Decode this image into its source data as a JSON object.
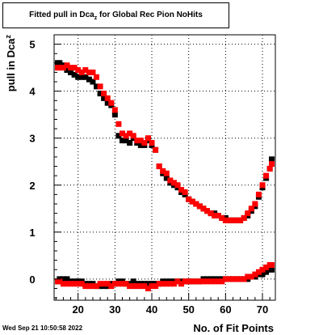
{
  "chart_data": {
    "type": "scatter",
    "title_main": "Fitted pull in Dca",
    "title_sub": "z",
    "title_rest": " for Global Rec Pion NoHits",
    "xlabel": "No. of Fit Points",
    "ylabel_main": "pull in Dca",
    "ylabel_sub": "z",
    "xlim": [
      13.5,
      73.5
    ],
    "ylim": [
      -0.45,
      5.2
    ],
    "x_ticks": [
      20,
      30,
      40,
      50,
      60,
      70
    ],
    "y_ticks": [
      0,
      1,
      2,
      3,
      4,
      5
    ],
    "grid": true,
    "x": [
      14,
      15,
      16,
      17,
      18,
      19,
      20,
      21,
      22,
      23,
      24,
      25,
      26,
      27,
      28,
      29,
      30,
      31,
      32,
      33,
      34,
      35,
      36,
      37,
      38,
      39,
      40,
      41,
      42,
      43,
      44,
      45,
      46,
      47,
      48,
      49,
      50,
      51,
      52,
      53,
      54,
      55,
      56,
      57,
      58,
      59,
      60,
      61,
      62,
      63,
      64,
      65,
      66,
      67,
      68,
      69,
      70,
      71,
      72,
      73
    ],
    "series": [
      {
        "color": "#000000",
        "values_upper": [
          4.6,
          4.6,
          4.55,
          4.45,
          4.4,
          4.35,
          4.3,
          4.3,
          4.3,
          4.25,
          4.2,
          4.1,
          3.95,
          3.85,
          3.75,
          3.7,
          3.5,
          3.05,
          2.95,
          2.95,
          2.9,
          3.0,
          2.9,
          2.85,
          2.85,
          2.95,
          2.85,
          2.75,
          2.4,
          2.25,
          2.15,
          2.05,
          2.0,
          1.95,
          1.85,
          1.8,
          1.7,
          1.65,
          1.6,
          1.55,
          1.5,
          1.45,
          1.4,
          1.4,
          1.35,
          1.3,
          1.3,
          1.25,
          1.25,
          1.25,
          1.25,
          1.3,
          1.35,
          1.45,
          1.55,
          1.75,
          1.95,
          2.15,
          2.35,
          2.55
        ],
        "values_lower": [
          -0.05,
          0.0,
          0.0,
          0.0,
          -0.05,
          -0.05,
          -0.05,
          -0.05,
          -0.1,
          -0.1,
          -0.1,
          -0.15,
          -0.15,
          -0.15,
          -0.15,
          -0.1,
          -0.1,
          -0.05,
          -0.05,
          -0.1,
          -0.1,
          -0.05,
          -0.1,
          -0.1,
          -0.1,
          -0.1,
          -0.1,
          -0.1,
          -0.1,
          -0.05,
          -0.05,
          -0.05,
          -0.05,
          -0.05,
          -0.05,
          -0.05,
          -0.05,
          -0.05,
          -0.05,
          -0.05,
          0.0,
          0.0,
          0.0,
          0.0,
          0.0,
          0.0,
          0.0,
          0.0,
          0.0,
          0.0,
          0.0,
          0.0,
          0.0,
          0.05,
          0.05,
          0.1,
          0.1,
          0.15,
          0.2,
          0.2
        ]
      },
      {
        "color": "#ff0000",
        "values_upper": [
          4.5,
          4.5,
          4.5,
          4.55,
          4.5,
          4.5,
          4.45,
          4.4,
          4.45,
          4.4,
          4.4,
          4.3,
          4.1,
          3.95,
          3.85,
          3.75,
          3.6,
          3.3,
          3.1,
          3.05,
          3.1,
          3.05,
          2.95,
          2.95,
          2.9,
          3.0,
          2.9,
          2.75,
          2.4,
          2.3,
          2.25,
          2.1,
          2.05,
          2.0,
          1.9,
          1.85,
          1.7,
          1.65,
          1.6,
          1.55,
          1.5,
          1.45,
          1.4,
          1.35,
          1.35,
          1.3,
          1.25,
          1.25,
          1.25,
          1.25,
          1.25,
          1.3,
          1.4,
          1.5,
          1.6,
          1.8,
          2.0,
          2.2,
          2.35,
          2.45
        ],
        "values_lower": [
          -0.05,
          -0.05,
          -0.1,
          -0.1,
          -0.1,
          -0.1,
          -0.1,
          -0.1,
          -0.15,
          -0.15,
          -0.15,
          -0.15,
          -0.1,
          -0.1,
          -0.1,
          -0.15,
          -0.1,
          -0.1,
          -0.1,
          -0.1,
          -0.15,
          -0.15,
          -0.15,
          -0.15,
          -0.15,
          -0.2,
          -0.15,
          -0.15,
          -0.1,
          -0.1,
          -0.1,
          -0.1,
          -0.1,
          -0.05,
          -0.1,
          -0.05,
          -0.05,
          -0.05,
          -0.05,
          -0.05,
          -0.05,
          -0.05,
          -0.05,
          -0.05,
          -0.05,
          -0.05,
          0.0,
          0.0,
          0.0,
          0.0,
          0.0,
          0.0,
          0.05,
          0.05,
          0.1,
          0.15,
          0.2,
          0.25,
          0.3,
          0.3
        ]
      }
    ]
  },
  "timestamp": "Wed Sep 21 10:50:58 2022"
}
